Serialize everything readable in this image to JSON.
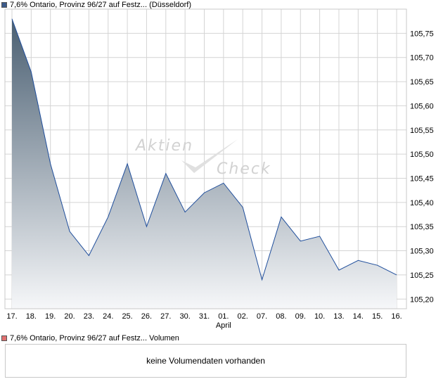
{
  "price_legend": {
    "label": "7,6% Ontario, Provinz 96/27 auf Festz... (Düsseldorf)",
    "swatch_color": "#3b5a8a"
  },
  "volume_legend": {
    "label": "7,6% Ontario, Provinz 96/27 auf Festz... Volumen",
    "swatch_color": "#e07070"
  },
  "volume_panel": {
    "message": "keine Volumendaten vorhanden"
  },
  "watermark": {
    "line1": "Aktien",
    "line2": "Check"
  },
  "chart_data": {
    "type": "area",
    "categories": [
      "17.",
      "18.",
      "19.",
      "20.",
      "23.",
      "24.",
      "25.",
      "26.",
      "27.",
      "30.",
      "31.",
      "01.",
      "02.",
      "07.",
      "08.",
      "09.",
      "10.",
      "13.",
      "14.",
      "15.",
      "16."
    ],
    "month_label": {
      "text": "April",
      "category": "01."
    },
    "series": [
      {
        "values": [
          105.78,
          105.67,
          105.48,
          105.34,
          105.29,
          105.37,
          105.48,
          105.35,
          105.46,
          105.38,
          105.42,
          105.44,
          105.39,
          105.24,
          105.37,
          105.32,
          105.33,
          105.26,
          105.28,
          105.27,
          105.25
        ]
      }
    ],
    "ylim": [
      105.18,
      105.8
    ],
    "yticks": [
      105.2,
      105.25,
      105.3,
      105.35,
      105.4,
      105.45,
      105.5,
      105.55,
      105.6,
      105.65,
      105.7,
      105.75
    ],
    "y_tick_labels": [
      "105,20",
      "105,25",
      "105,30",
      "105,35",
      "105,40",
      "105,45",
      "105,50",
      "105,55",
      "105,60",
      "105,65",
      "105,70",
      "105,75"
    ],
    "y_axis_position": "right",
    "grid": true,
    "colors": {
      "line": "#1f4e9c",
      "fill_top": "#4a5f72",
      "fill_bottom": "#f6f7f9",
      "grid": "#d4d4d4"
    }
  }
}
